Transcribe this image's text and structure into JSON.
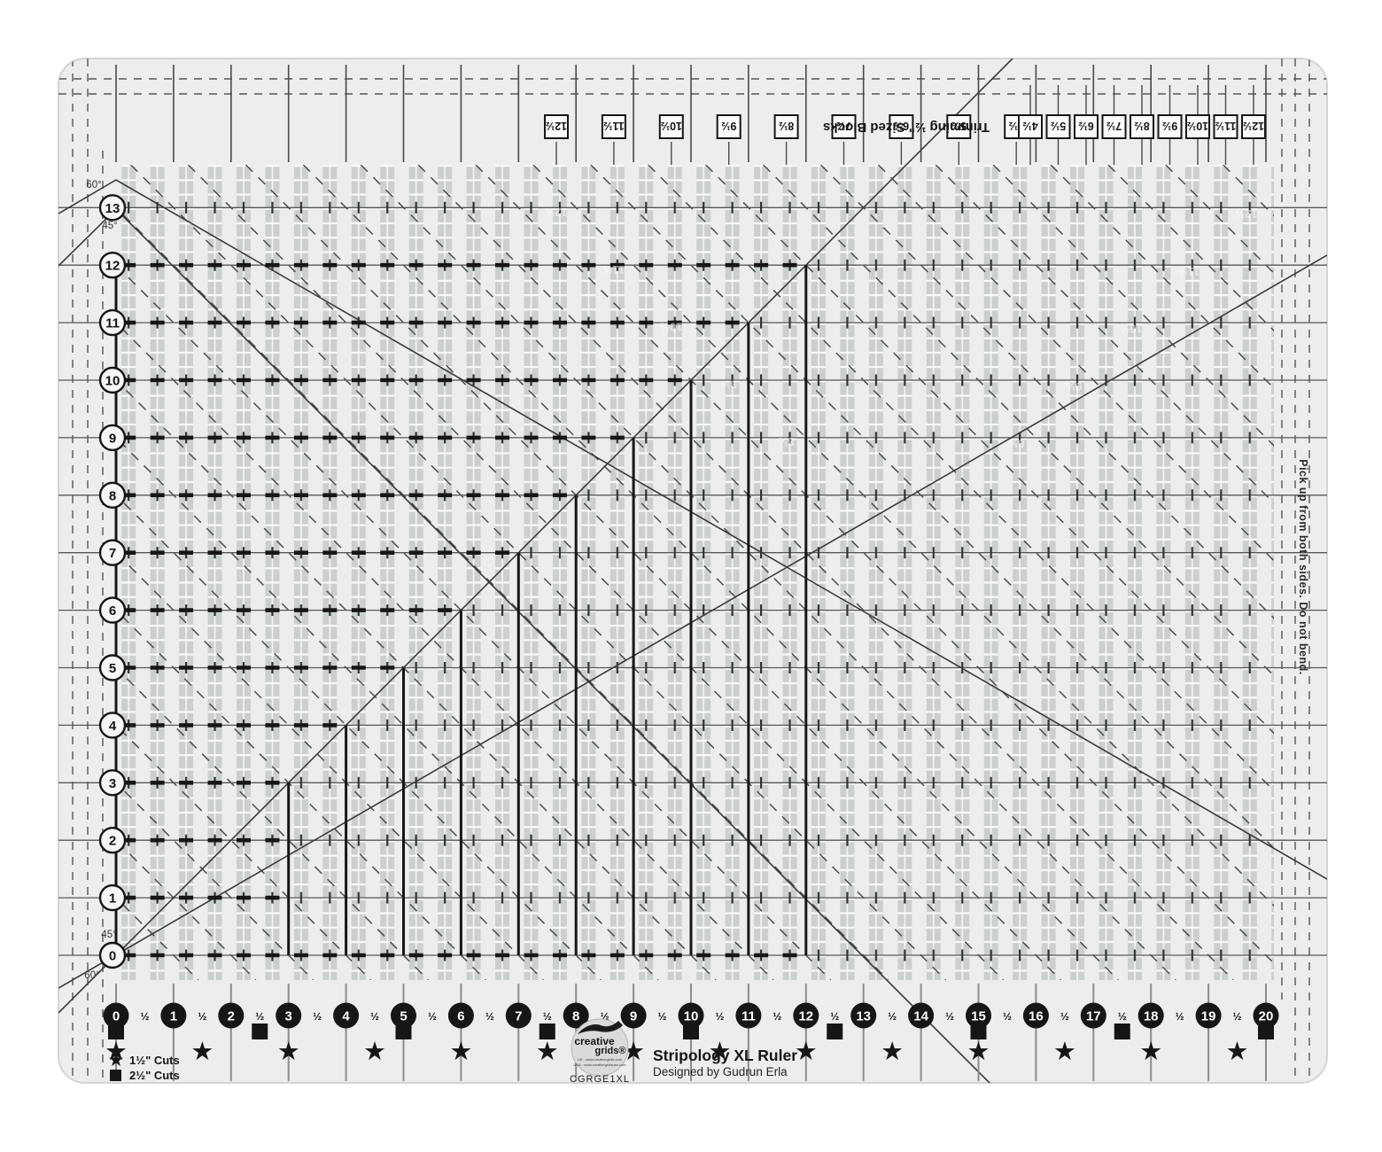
{
  "product": {
    "title": "Stripology XL Ruler",
    "designer": "Designed by Gudrun Erla",
    "sku": "CGRGE1XL"
  },
  "logo": {
    "brand_line1": "creative",
    "brand_line2": "grids®",
    "sub_lines": [
      "UK - www.creativegrids.com",
      "USA - www.creativegridsusa.com"
    ]
  },
  "top_scale": {
    "left_boxes": [
      "12½",
      "11½",
      "10½",
      "9½",
      "8½",
      "7½",
      "6½",
      "5½",
      "4½"
    ],
    "right_boxes": [
      "4½",
      "5½",
      "6½",
      "7½",
      "8½",
      "9½",
      "10½",
      "11½",
      "12½"
    ],
    "note": "Trimming ½\" Sized Blocks"
  },
  "left_scale": {
    "values": [
      "0",
      "1",
      "2",
      "3",
      "4",
      "5",
      "6",
      "7",
      "8",
      "9",
      "10",
      "11",
      "12",
      "13"
    ]
  },
  "bottom_scale": {
    "values": [
      "0",
      "1",
      "2",
      "3",
      "4",
      "5",
      "6",
      "7",
      "8",
      "9",
      "10",
      "11",
      "12",
      "13",
      "14",
      "15",
      "16",
      "17",
      "18",
      "19",
      "20"
    ],
    "half": "½"
  },
  "markers": {
    "star_symbol": "★",
    "square_symbol": "■",
    "star_step_inches": 1.5,
    "square_step_inches": 2.5,
    "max_inches": 20
  },
  "legend": [
    {
      "symbol": "★",
      "label": "1½\" Cuts"
    },
    {
      "symbol": "■",
      "label": "2½\" Cuts"
    }
  ],
  "angle_labels": {
    "top": [
      "60°",
      "45°"
    ],
    "bottom": [
      "45°",
      "60°"
    ]
  },
  "edge_note": "Pick up from both sides. Do not bend.",
  "ghost_labels": {
    "left": [
      "12½",
      "11½",
      "10½",
      "9½",
      "8½"
    ],
    "right": [
      "12½",
      "11½",
      "10½",
      "9½",
      "8½"
    ]
  },
  "colors": {
    "ruler": "#ededee",
    "slot": "#c7cacc",
    "ink": "#161616",
    "line": "#54575a",
    "white_mark": "#ffffff"
  }
}
